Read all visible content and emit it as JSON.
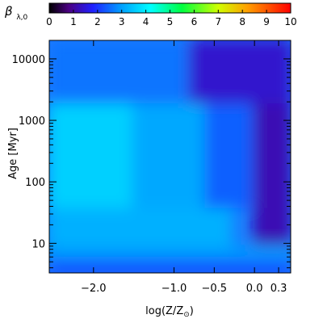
{
  "chart_data": {
    "type": "heatmap",
    "colorbar": {
      "label_symbol": "β",
      "label_subscript": "λ,0",
      "range": [
        0,
        10
      ],
      "ticks": [
        "0",
        "1",
        "2",
        "3",
        "4",
        "5",
        "6",
        "7",
        "8",
        "9",
        "10"
      ],
      "colormap": "rainbow (black-purple-blue-cyan-green-yellow-red)"
    },
    "x_axis": {
      "label": "log(Z/Z",
      "label_subscript": "⊙",
      "label_suffix": ")",
      "range": [
        -2.55,
        0.45
      ],
      "ticks": [
        {
          "value": -2.0,
          "label": "−2.0"
        },
        {
          "value": -1.0,
          "label": "−1.0"
        },
        {
          "value": -0.5,
          "label": "−0.5"
        },
        {
          "value": 0.0,
          "label": "0.0"
        },
        {
          "value": 0.3,
          "label": "0.3"
        }
      ]
    },
    "y_axis": {
      "label": "Age [Myr]",
      "scale": "log",
      "range": [
        3.3,
        20000
      ],
      "ticks": [
        {
          "value": 10,
          "label": "10"
        },
        {
          "value": 100,
          "label": "100"
        },
        {
          "value": 1000,
          "label": "1000"
        },
        {
          "value": 10000,
          "label": "10000"
        }
      ]
    },
    "regions_beta": [
      {
        "age_myr": [
          3.3,
          5.3
        ],
        "logZ": [
          -2.55,
          0.45
        ],
        "beta": 2.1
      },
      {
        "age_myr": [
          5.3,
          9
        ],
        "logZ": [
          -2.55,
          0.45
        ],
        "beta": 2.9
      },
      {
        "age_myr": [
          9,
          40
        ],
        "logZ": [
          -2.55,
          -0.3
        ],
        "beta": 3.2
      },
      {
        "age_myr": [
          40,
          2000
        ],
        "logZ": [
          -2.55,
          -1.5
        ],
        "beta": 3.6
      },
      {
        "age_myr": [
          40,
          2000
        ],
        "logZ": [
          -1.5,
          -0.6
        ],
        "beta": 3.1
      },
      {
        "age_myr": [
          40,
          2000
        ],
        "logZ": [
          -0.6,
          0.0
        ],
        "beta": 2.4
      },
      {
        "age_myr": [
          10,
          2000
        ],
        "logZ": [
          0.0,
          0.45
        ],
        "beta": 1.2
      },
      {
        "age_myr": [
          2000,
          20000
        ],
        "logZ": [
          -2.55,
          -0.8
        ],
        "beta": 2.6
      },
      {
        "age_myr": [
          2000,
          20000
        ],
        "logZ": [
          -0.8,
          0.45
        ],
        "beta": 1.4
      }
    ]
  }
}
